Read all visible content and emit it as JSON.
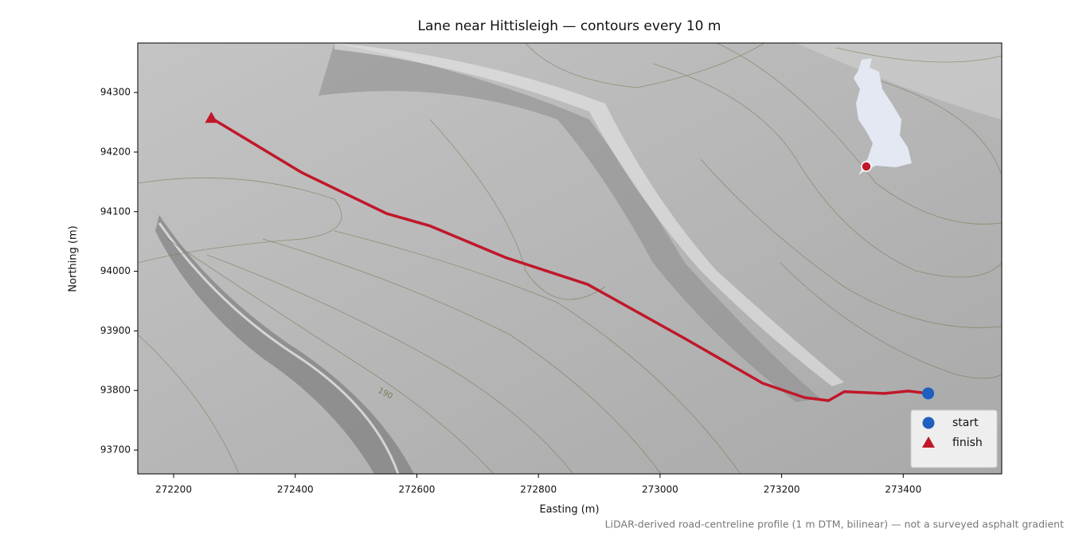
{
  "chart_data": {
    "type": "line",
    "title": "Lane near Hittisleigh — contours every 10 m",
    "xlabel": "Easting (m)",
    "ylabel": "Northing (m)",
    "footnote": "LiDAR-derived road-centreline profile (1 m DTM, bilinear) — not a surveyed asphalt gradient",
    "xlim": [
      272141,
      273562
    ],
    "ylim": [
      93660,
      94383
    ],
    "xticks": [
      272200,
      272400,
      272600,
      272800,
      273000,
      273200,
      273400
    ],
    "yticks": [
      93700,
      93800,
      93900,
      94000,
      94100,
      94200,
      94300
    ],
    "route": {
      "color": "#c0182a",
      "x": [
        272262,
        272410,
        272550,
        272622,
        272746,
        272881,
        273041,
        273169,
        273238,
        273277,
        273303,
        273369,
        273408,
        273441
      ],
      "y": [
        94257,
        94166,
        94097,
        94076,
        94023,
        93978,
        93887,
        93812,
        93788,
        93783,
        93798,
        93795,
        93799,
        93795
      ]
    },
    "markers": [
      {
        "name": "start",
        "color": "#1f5fbf",
        "shape": "circle",
        "x": 273441,
        "y": 93795
      },
      {
        "name": "finish",
        "color": "#c0182a",
        "shape": "triangle",
        "x": 272262,
        "y": 94257
      }
    ],
    "contour_label": 190,
    "legend": "lower right"
  }
}
